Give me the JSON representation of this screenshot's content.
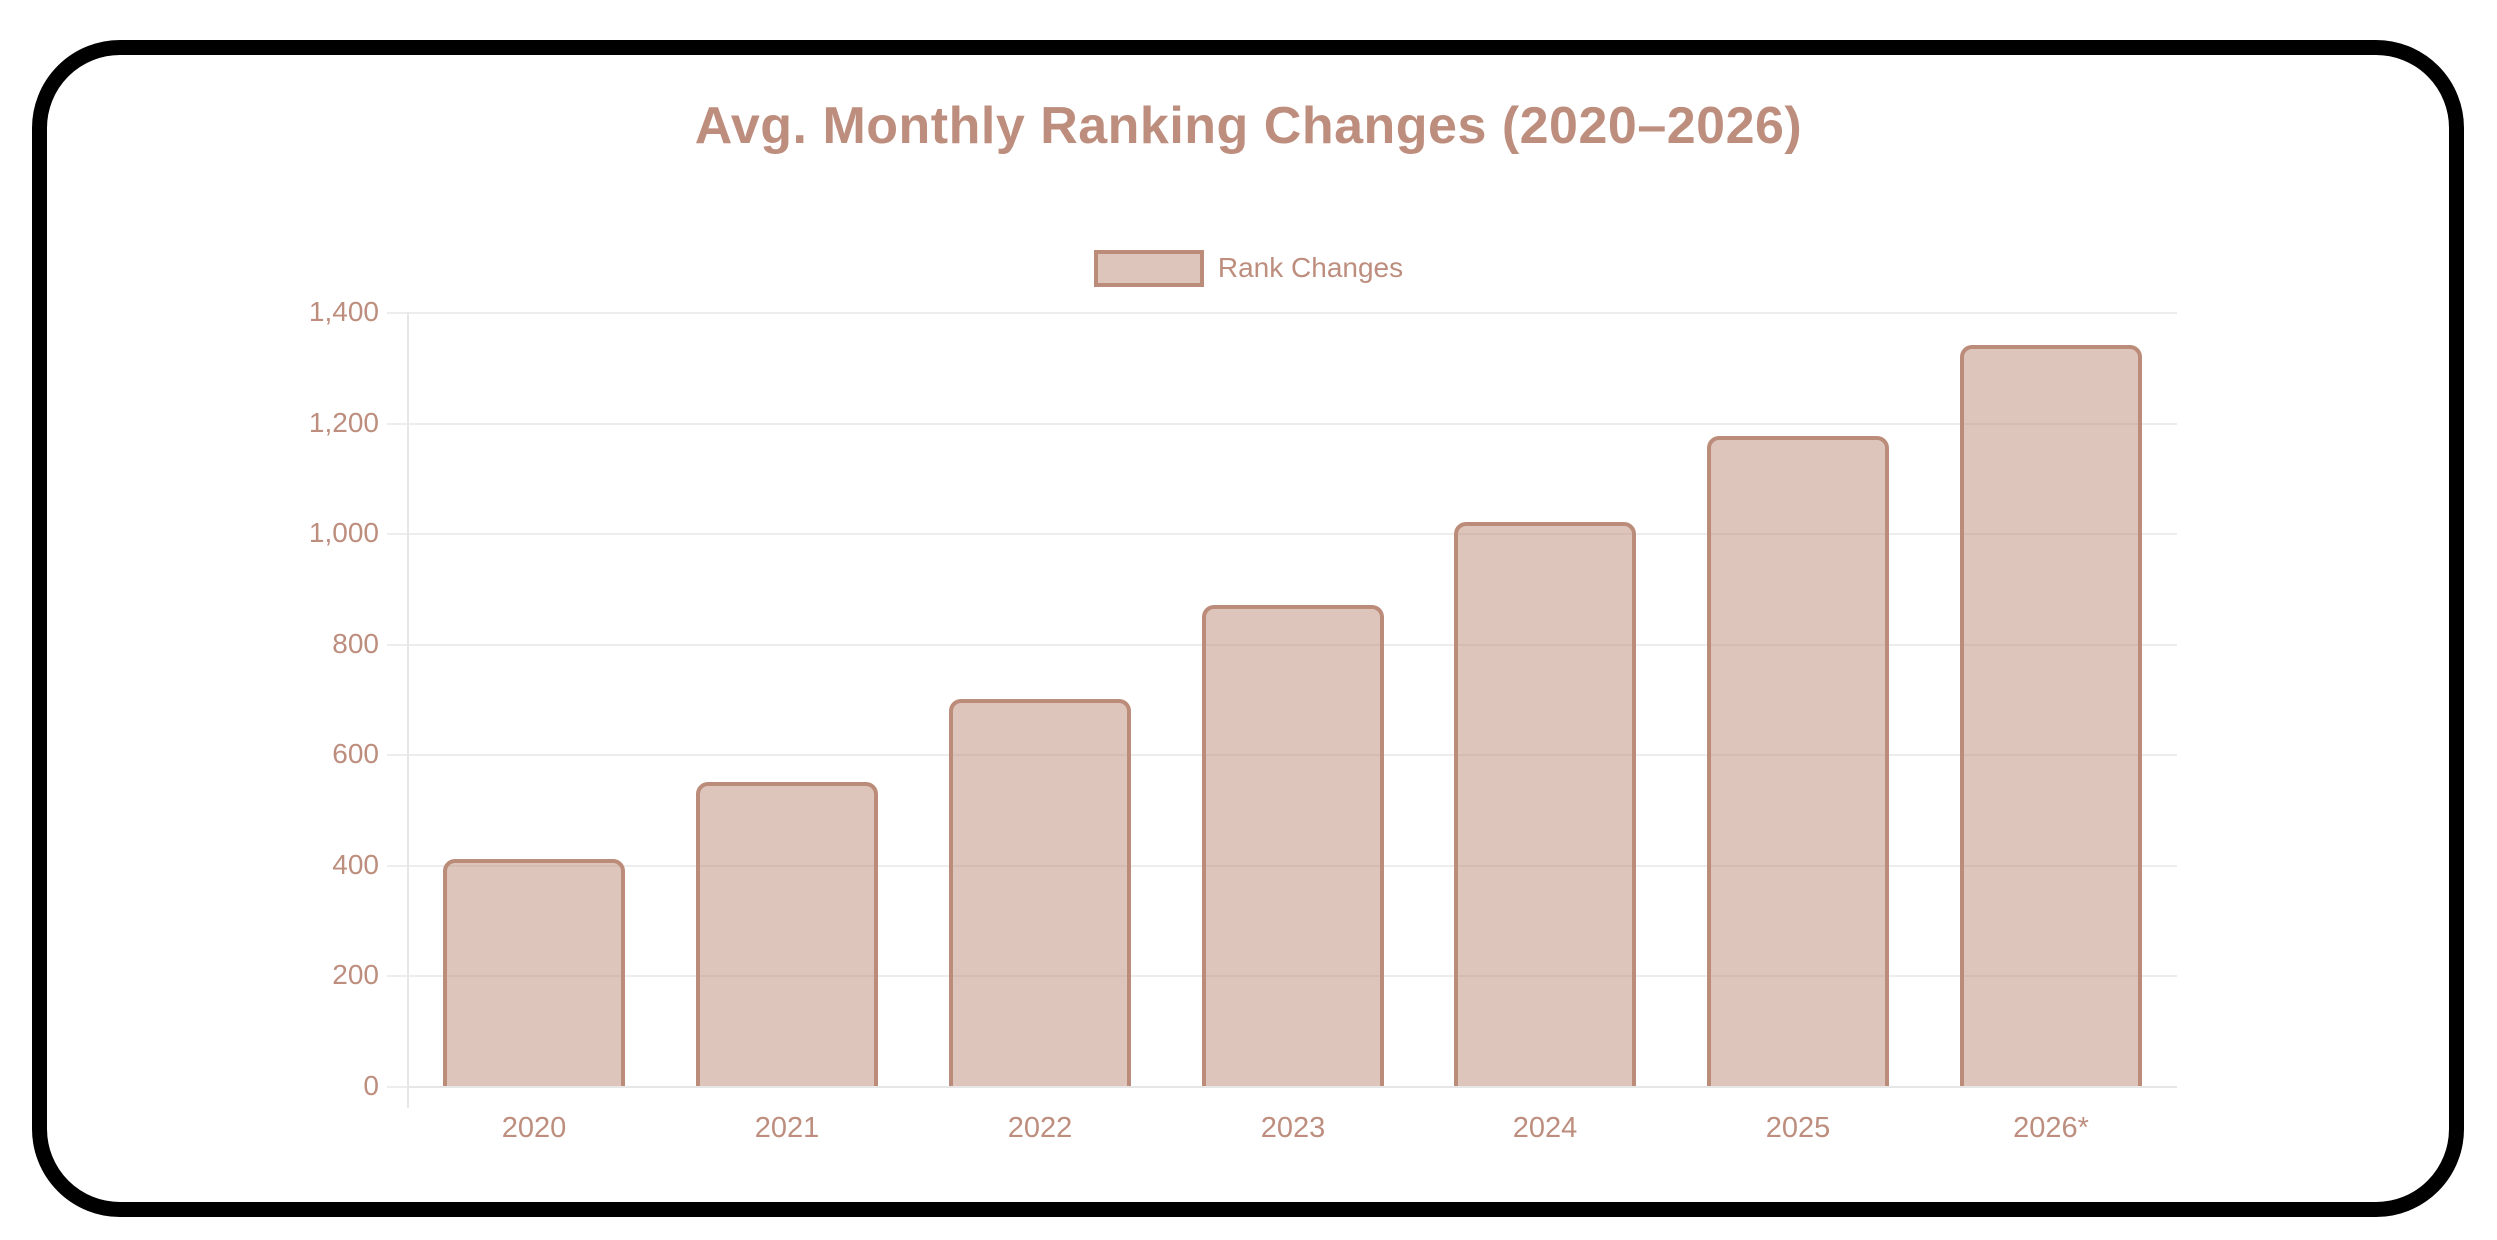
{
  "chart_data": {
    "type": "bar",
    "title": "Avg. Monthly Ranking Changes (2020–2026)",
    "legend": {
      "label": "Rank Changes",
      "position": "top"
    },
    "categories": [
      "2020",
      "2021",
      "2022",
      "2023",
      "2024",
      "2025",
      "2026*"
    ],
    "series": [
      {
        "name": "Rank Changes",
        "values": [
          410,
          550,
          700,
          870,
          1020,
          1175,
          1340
        ]
      }
    ],
    "xlabel": "",
    "ylabel": "",
    "ylim": [
      0,
      1400
    ],
    "ytick_step": 200,
    "ytick_labels": [
      "0",
      "200",
      "400",
      "600",
      "800",
      "1,000",
      "1,200",
      "1,400"
    ],
    "grid": true,
    "colors": {
      "bar_fill": "rgba(188,140,122,0.5)",
      "bar_border": "#bc8c7a",
      "text": "#bd8e7e",
      "gridline": "#ededed",
      "axis_line": "#e6e6e6",
      "frame": "#000000",
      "background": "#ffffff"
    }
  }
}
